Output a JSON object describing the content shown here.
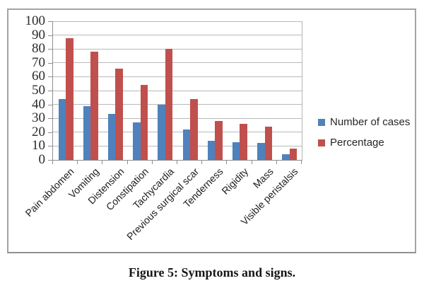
{
  "figure": {
    "caption": "Figure 5: Symptoms and signs."
  },
  "chart_data": {
    "type": "bar",
    "title": "",
    "xlabel": "",
    "ylabel": "",
    "categories": [
      "Pain abdomen",
      "Vomiting",
      "Distension",
      "Constipation",
      "Tachycardia",
      "Previous surgical scar",
      "Tenderness",
      "Rigidity",
      "Mass",
      "Visible peristalsis"
    ],
    "series": [
      {
        "name": "Number of cases",
        "color": "#4F81BD",
        "values": [
          44,
          39,
          33,
          27,
          40,
          22,
          14,
          13,
          12,
          4
        ]
      },
      {
        "name": "Percentage",
        "color": "#C0504D",
        "values": [
          88,
          78,
          66,
          54,
          80,
          44,
          28,
          26,
          24,
          8
        ]
      }
    ],
    "ylim": [
      0,
      100
    ],
    "y_ticks": [
      0,
      10,
      20,
      30,
      40,
      50,
      60,
      70,
      80,
      90,
      100
    ],
    "grid": true,
    "legend_position": "right",
    "colors": {
      "gridline": "#b9b9b9",
      "axis": "#8e8e8e",
      "frame_border": "#a3a3a3"
    }
  }
}
